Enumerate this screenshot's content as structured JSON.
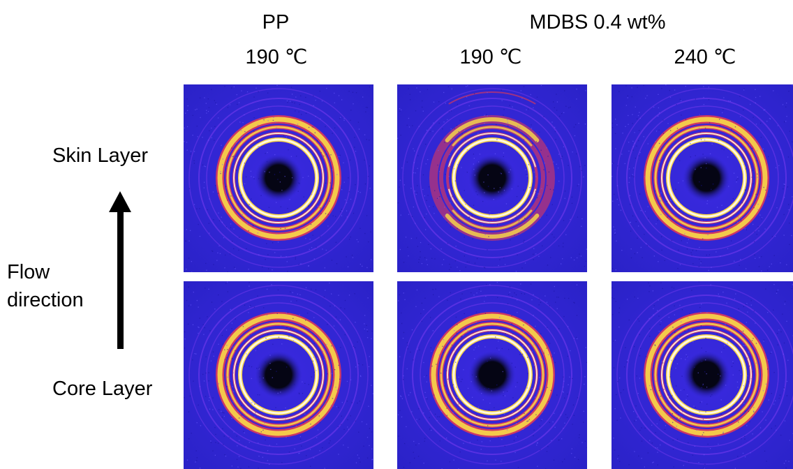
{
  "headers": {
    "group_pp": "PP",
    "group_mdbs": "MDBS 0.4 wt%",
    "temp_col1": "190 ℃",
    "temp_col2": "190 ℃",
    "temp_col3": "240 ℃"
  },
  "rows": {
    "skin": "Skin Layer",
    "core": "Core Layer"
  },
  "flow": {
    "line1": "Flow",
    "line2": "direction"
  },
  "colors": {
    "background_blue": "#2a22c8",
    "ring_purple": "#7a3cf0",
    "ring_red": "#e83a52",
    "ring_yellow": "#f6d24a",
    "ring_white": "#fff8e0",
    "beamstop": "#050514"
  },
  "panels": [
    {
      "row": "skin",
      "col": 1,
      "pattern": "isotropic-rings"
    },
    {
      "row": "skin",
      "col": 2,
      "pattern": "oriented-arcs"
    },
    {
      "row": "skin",
      "col": 3,
      "pattern": "isotropic-rings"
    },
    {
      "row": "core",
      "col": 1,
      "pattern": "isotropic-rings"
    },
    {
      "row": "core",
      "col": 2,
      "pattern": "isotropic-rings"
    },
    {
      "row": "core",
      "col": 3,
      "pattern": "isotropic-rings"
    }
  ]
}
